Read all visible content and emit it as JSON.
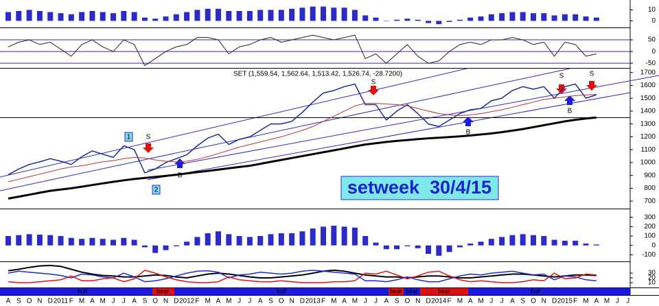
{
  "chart_data": [
    {
      "type": "bar",
      "color": "#2b2bc8",
      "ylim": [
        -6,
        19
      ],
      "yticks": [
        10,
        0
      ],
      "values": [
        8,
        9,
        10,
        9,
        8,
        7,
        6,
        8,
        9,
        8,
        7,
        9,
        8,
        3,
        2,
        4,
        6,
        8,
        10,
        11,
        11,
        9,
        9,
        9,
        10,
        10,
        10,
        11,
        12,
        13,
        13,
        12,
        12,
        10,
        5,
        3,
        0,
        1,
        2,
        1,
        -2,
        -3,
        -1,
        1,
        3,
        4,
        6,
        7,
        8,
        8,
        7,
        7,
        5,
        6,
        6,
        4,
        3,
        null,
        null,
        null
      ]
    },
    {
      "type": "line",
      "ylim": [
        -70,
        100
      ],
      "yticks": [
        50,
        0,
        -50
      ],
      "grid": true,
      "grid_color": "#2b2bc8",
      "series": [
        {
          "color": "#222222",
          "values": [
            20,
            40,
            50,
            30,
            40,
            10,
            -20,
            30,
            50,
            20,
            0,
            50,
            30,
            -60,
            -30,
            0,
            20,
            30,
            60,
            60,
            50,
            -10,
            20,
            30,
            50,
            60,
            40,
            50,
            60,
            70,
            60,
            50,
            60,
            70,
            -30,
            -10,
            -50,
            -10,
            30,
            -20,
            -50,
            -40,
            0,
            30,
            40,
            30,
            50,
            50,
            60,
            50,
            30,
            40,
            -20,
            40,
            30,
            -20,
            -10,
            null,
            null,
            null
          ]
        }
      ]
    },
    {
      "type": "line",
      "title": "SET (1,559.54, 1,562.64, 1,513.42, 1,526.74, -28.7200)",
      "ylim": [
        530,
        1730
      ],
      "yticks": [
        {
          "value": 1700,
          "label": "1700"
        },
        {
          "value": 1600,
          "label": "1600"
        },
        {
          "value": 1500,
          "label": "1500"
        },
        {
          "value": 1400,
          "label": "1400"
        },
        {
          "value": 1300,
          "label": "1300"
        },
        {
          "value": 1200,
          "label": "1200"
        },
        {
          "value": 1100,
          "label": "1100"
        },
        {
          "value": 1000,
          "label": "1000"
        },
        900,
        800,
        700
      ],
      "categories": [
        "A",
        "S",
        "O",
        "N",
        "D",
        "2011",
        "F",
        "M",
        "A",
        "M",
        "J",
        "J",
        "A",
        "S",
        "O",
        "N",
        "D",
        "2012",
        "F",
        "M",
        "A",
        "M",
        "J",
        "J",
        "A",
        "S",
        "O",
        "N",
        "D",
        "2013",
        "F",
        "M",
        "A",
        "M",
        "J",
        "J",
        "A",
        "S",
        "O",
        "N",
        "D",
        "2014",
        "F",
        "M",
        "A",
        "M",
        "J",
        "J",
        "A",
        "S",
        "O",
        "N",
        "D",
        "2015",
        "F",
        "M",
        "A",
        "M",
        "J",
        "J"
      ],
      "series": [
        {
          "color": "#1a2a9a",
          "width": 1.5,
          "values": [
            905,
            950,
            985,
            1005,
            1030,
            1010,
            985,
            1045,
            1090,
            1065,
            1040,
            1130,
            1100,
            920,
            950,
            1000,
            1030,
            1060,
            1130,
            1190,
            1220,
            1140,
            1180,
            1200,
            1250,
            1300,
            1300,
            1320,
            1390,
            1470,
            1540,
            1560,
            1590,
            1610,
            1450,
            1450,
            1330,
            1400,
            1450,
            1380,
            1300,
            1280,
            1330,
            1380,
            1410,
            1420,
            1480,
            1500,
            1560,
            1590,
            1570,
            1590,
            1500,
            1590,
            1610,
            1500,
            1527,
            null,
            null,
            null
          ]
        },
        {
          "color": "#c03030",
          "width": 1,
          "values": [
            850,
            870,
            890,
            910,
            930,
            950,
            965,
            975,
            990,
            1005,
            1015,
            1030,
            1040,
            1035,
            1020,
            1010,
            1005,
            1010,
            1025,
            1045,
            1070,
            1095,
            1120,
            1140,
            1160,
            1180,
            1200,
            1225,
            1250,
            1280,
            1320,
            1360,
            1400,
            1440,
            1460,
            1460,
            1455,
            1450,
            1440,
            1420,
            1400,
            1380,
            1370,
            1365,
            1370,
            1380,
            1395,
            1410,
            1430,
            1450,
            1470,
            1490,
            1500,
            1510,
            1520,
            1525,
            1530,
            null,
            null,
            null
          ]
        },
        {
          "color": "#000000",
          "width": 3,
          "values": [
            720,
            735,
            750,
            765,
            780,
            790,
            800,
            812,
            825,
            838,
            850,
            862,
            872,
            880,
            888,
            896,
            905,
            915,
            925,
            935,
            945,
            955,
            965,
            975,
            990,
            1005,
            1020,
            1035,
            1050,
            1065,
            1080,
            1095,
            1110,
            1125,
            1140,
            1150,
            1160,
            1168,
            1175,
            1182,
            1188,
            1193,
            1198,
            1203,
            1210,
            1218,
            1226,
            1236,
            1248,
            1260,
            1275,
            1290,
            1305,
            1320,
            1332,
            1342,
            1350,
            null,
            null,
            null
          ]
        }
      ],
      "annotations": [
        "setweek  30/4/15",
        "1",
        "2",
        "S",
        "S",
        "S",
        "S",
        "B",
        "B",
        "B"
      ]
    },
    {
      "type": "bar",
      "color": "#2b2bc8",
      "ylim": [
        -170,
        385
      ],
      "yticks": [
        300,
        200,
        100,
        0,
        -100
      ],
      "values": [
        100,
        110,
        120,
        115,
        110,
        100,
        80,
        70,
        80,
        70,
        60,
        80,
        60,
        -20,
        -80,
        -50,
        -10,
        40,
        90,
        130,
        150,
        120,
        100,
        90,
        100,
        120,
        130,
        130,
        150,
        180,
        200,
        210,
        200,
        190,
        100,
        30,
        -40,
        -40,
        -10,
        -30,
        -90,
        -110,
        -70,
        -20,
        20,
        40,
        70,
        90,
        110,
        120,
        110,
        100,
        60,
        50,
        50,
        20,
        10,
        null,
        null,
        null
      ]
    },
    {
      "type": "line",
      "ylim": [
        0,
        53
      ],
      "yticks": [
        30,
        20,
        10
      ],
      "series": [
        {
          "color": "#000000",
          "width": 2,
          "values": [
            35,
            38,
            42,
            45,
            46,
            44,
            38,
            32,
            28,
            25,
            24,
            22,
            22,
            24,
            26,
            25,
            22,
            20,
            24,
            28,
            30,
            28,
            25,
            22,
            20,
            20,
            22,
            24,
            26,
            30,
            34,
            36,
            34,
            30,
            26,
            24,
            22,
            22,
            20,
            22,
            24,
            24,
            22,
            20,
            20,
            22,
            24,
            26,
            28,
            28,
            26,
            24,
            22,
            24,
            26,
            26,
            25,
            null,
            null,
            null
          ]
        },
        {
          "color": "#1a2ad0",
          "width": 1.5,
          "values": [
            30,
            34,
            32,
            30,
            28,
            25,
            20,
            28,
            26,
            22,
            20,
            30,
            22,
            12,
            14,
            18,
            24,
            30,
            34,
            35,
            32,
            20,
            26,
            28,
            32,
            30,
            28,
            30,
            34,
            36,
            34,
            32,
            30,
            28,
            14,
            14,
            12,
            16,
            22,
            16,
            12,
            12,
            18,
            24,
            28,
            26,
            30,
            32,
            34,
            30,
            26,
            28,
            16,
            24,
            22,
            16,
            14,
            null,
            null,
            null
          ]
        },
        {
          "color": "#e01010",
          "width": 1.5,
          "values": [
            12,
            10,
            10,
            12,
            14,
            16,
            24,
            14,
            14,
            18,
            20,
            12,
            18,
            36,
            30,
            22,
            16,
            12,
            10,
            10,
            12,
            22,
            16,
            14,
            12,
            12,
            14,
            12,
            10,
            10,
            10,
            12,
            12,
            14,
            30,
            28,
            34,
            26,
            18,
            24,
            32,
            34,
            24,
            16,
            12,
            14,
            12,
            10,
            10,
            12,
            16,
            14,
            30,
            18,
            20,
            28,
            26,
            null,
            null,
            null
          ]
        }
      ],
      "annotations": [
        "bull",
        "bear",
        "bull",
        "bear",
        "bear",
        "bear",
        "bull"
      ]
    }
  ]
}
